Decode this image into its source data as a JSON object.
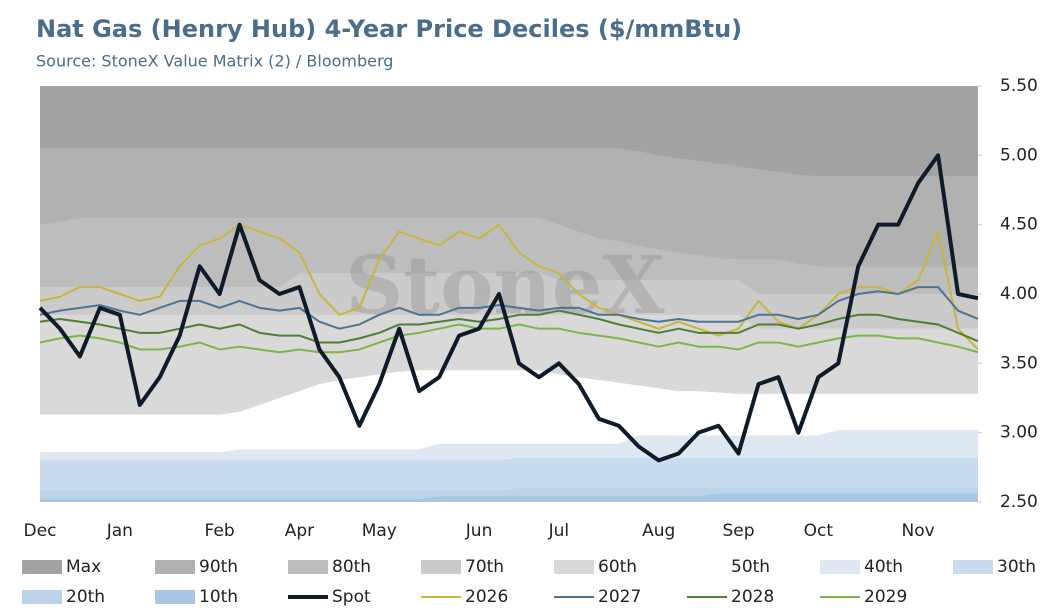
{
  "chart_data": {
    "type": "line",
    "title": "Nat Gas (Henry Hub) 4-Year Price Deciles ($/mmBtu)",
    "subtitle": "Source: StoneX Value Matrix (2) / Bloomberg",
    "watermark": "StoneX",
    "categories": [
      "Dec",
      null,
      null,
      null,
      "Jan",
      null,
      null,
      null,
      null,
      "Feb",
      null,
      null,
      null,
      "Apr",
      null,
      null,
      null,
      "May",
      null,
      null,
      null,
      null,
      "Jun",
      null,
      null,
      null,
      "Jul",
      null,
      null,
      null,
      null,
      "Aug",
      null,
      null,
      null,
      "Sep",
      null,
      null,
      null,
      "Oct",
      null,
      null,
      null,
      null,
      "Nov",
      null,
      null,
      null
    ],
    "ylim": [
      2.5,
      5.5
    ],
    "yticks": [
      {
        "value": 2.5,
        "label": "2.50"
      },
      {
        "value": 3,
        "label": "3.00"
      },
      {
        "value": 3.5,
        "label": "3.50"
      },
      {
        "value": 4,
        "label": "4.00"
      },
      {
        "value": 4.5,
        "label": "4.50"
      },
      {
        "value": 5,
        "label": "5.00"
      },
      {
        "value": 5.5,
        "label": "5.50"
      }
    ],
    "bands": [
      {
        "name": "Max",
        "color": "#a3a3a3",
        "values": [
          5.5,
          5.5,
          5.5,
          5.5,
          5.5,
          5.5,
          5.5,
          5.5,
          5.5,
          5.5,
          5.5,
          5.5,
          5.5,
          5.5,
          5.5,
          5.5,
          5.5,
          5.5,
          5.5,
          5.5,
          5.5,
          5.5,
          5.5,
          5.5,
          5.5,
          5.5,
          5.5,
          5.5,
          5.5,
          5.5,
          5.5,
          5.5,
          5.5,
          5.5,
          5.5,
          5.5,
          5.5,
          5.5,
          5.5,
          5.5,
          5.5,
          5.5,
          5.5,
          5.5,
          5.5,
          5.5,
          5.5,
          5.5
        ]
      },
      {
        "name": "90th",
        "color": "#b1b1b1",
        "values": [
          5.05,
          5.05,
          5.05,
          5.05,
          5.05,
          5.05,
          5.05,
          5.05,
          5.05,
          5.05,
          5.05,
          5.05,
          5.05,
          5.05,
          5.05,
          5.05,
          5.05,
          5.05,
          5.05,
          5.05,
          5.05,
          5.05,
          5.05,
          5.05,
          5.05,
          5.05,
          5.05,
          5.05,
          5.05,
          5.05,
          5.03,
          5.0,
          4.98,
          4.96,
          4.94,
          4.92,
          4.9,
          4.88,
          4.86,
          4.85,
          4.85,
          4.85,
          4.85,
          4.85,
          4.85,
          4.85,
          4.85,
          4.85
        ]
      },
      {
        "name": "80th",
        "color": "#bdbdbd",
        "values": [
          4.5,
          4.52,
          4.55,
          4.55,
          4.55,
          4.55,
          4.55,
          4.55,
          4.55,
          4.55,
          4.55,
          4.55,
          4.55,
          4.55,
          4.55,
          4.55,
          4.55,
          4.55,
          4.55,
          4.55,
          4.55,
          4.55,
          4.55,
          4.55,
          4.55,
          4.55,
          4.5,
          4.45,
          4.4,
          4.38,
          4.35,
          4.32,
          4.3,
          4.28,
          4.26,
          4.25,
          4.25,
          4.25,
          4.22,
          4.2,
          4.2,
          4.2,
          4.2,
          4.2,
          4.2,
          4.2,
          4.2,
          4.2
        ]
      },
      {
        "name": "70th",
        "color": "#cbcbcb",
        "values": [
          4.05,
          4.05,
          4.05,
          4.05,
          4.05,
          4.05,
          4.05,
          4.05,
          4.05,
          4.05,
          4.05,
          4.05,
          4.05,
          4.15,
          4.15,
          4.15,
          4.15,
          4.15,
          4.15,
          4.15,
          4.15,
          4.15,
          4.15,
          4.15,
          4.15,
          4.15,
          4.1,
          4.1,
          4.1,
          4.1,
          4.1,
          4.1,
          4.1,
          4.1,
          4.1,
          4.1,
          4.0,
          4.0,
          4.0,
          4.0,
          4.0,
          4.0,
          4.0,
          4.0,
          4.0,
          4.0,
          4.0,
          4.0
        ]
      },
      {
        "name": "60th",
        "color": "#d9d9d9",
        "values": [
          3.85,
          3.85,
          3.85,
          3.85,
          3.85,
          3.85,
          3.85,
          3.85,
          3.85,
          3.85,
          3.85,
          3.85,
          3.85,
          3.85,
          3.85,
          3.85,
          3.85,
          3.85,
          3.85,
          3.85,
          3.85,
          3.85,
          3.85,
          3.85,
          3.85,
          3.85,
          3.85,
          3.85,
          3.85,
          3.85,
          3.85,
          3.85,
          3.85,
          3.85,
          3.85,
          3.85,
          3.75,
          3.75,
          3.75,
          3.75,
          3.75,
          3.75,
          3.75,
          3.75,
          3.75,
          3.75,
          3.75,
          3.75
        ]
      },
      {
        "name": "50th",
        "color": "#ffffff",
        "values": [
          3.13,
          3.13,
          3.13,
          3.13,
          3.13,
          3.13,
          3.13,
          3.13,
          3.13,
          3.13,
          3.15,
          3.2,
          3.25,
          3.3,
          3.35,
          3.38,
          3.4,
          3.42,
          3.44,
          3.45,
          3.45,
          3.45,
          3.45,
          3.45,
          3.45,
          3.45,
          3.42,
          3.4,
          3.38,
          3.36,
          3.34,
          3.32,
          3.3,
          3.3,
          3.29,
          3.28,
          3.28,
          3.28,
          3.28,
          3.28,
          3.28,
          3.28,
          3.28,
          3.28,
          3.28,
          3.28,
          3.28,
          3.28
        ]
      },
      {
        "name": "40th",
        "color": "#dde8f3",
        "values": [
          2.86,
          2.86,
          2.86,
          2.86,
          2.86,
          2.86,
          2.86,
          2.86,
          2.86,
          2.86,
          2.88,
          2.88,
          2.88,
          2.88,
          2.88,
          2.88,
          2.88,
          2.88,
          2.88,
          2.88,
          2.92,
          2.92,
          2.92,
          2.92,
          2.92,
          2.92,
          2.92,
          2.92,
          2.92,
          2.92,
          2.98,
          2.98,
          2.98,
          2.98,
          2.98,
          2.98,
          2.98,
          2.98,
          2.98,
          2.98,
          3.02,
          3.02,
          3.02,
          3.02,
          3.02,
          3.02,
          3.02,
          3.02
        ]
      },
      {
        "name": "30th",
        "color": "#c9dcef",
        "values": [
          2.8,
          2.8,
          2.8,
          2.8,
          2.8,
          2.8,
          2.8,
          2.8,
          2.8,
          2.8,
          2.8,
          2.8,
          2.8,
          2.8,
          2.8,
          2.8,
          2.8,
          2.8,
          2.8,
          2.8,
          2.8,
          2.8,
          2.8,
          2.8,
          2.82,
          2.82,
          2.82,
          2.82,
          2.82,
          2.82,
          2.82,
          2.82,
          2.82,
          2.82,
          2.82,
          2.82,
          2.82,
          2.82,
          2.82,
          2.82,
          2.82,
          2.82,
          2.82,
          2.82,
          2.82,
          2.82,
          2.82,
          2.82
        ]
      },
      {
        "name": "20th",
        "color": "#bcd3ea",
        "values": [
          2.58,
          2.58,
          2.58,
          2.58,
          2.58,
          2.58,
          2.58,
          2.58,
          2.58,
          2.58,
          2.58,
          2.58,
          2.58,
          2.58,
          2.58,
          2.58,
          2.58,
          2.58,
          2.58,
          2.58,
          2.58,
          2.58,
          2.58,
          2.58,
          2.6,
          2.6,
          2.6,
          2.6,
          2.6,
          2.6,
          2.6,
          2.6,
          2.6,
          2.6,
          2.6,
          2.6,
          2.6,
          2.6,
          2.6,
          2.6,
          2.6,
          2.6,
          2.6,
          2.6,
          2.6,
          2.6,
          2.6,
          2.6
        ]
      },
      {
        "name": "10th",
        "color": "#a6c6e4",
        "values": [
          2.52,
          2.52,
          2.52,
          2.52,
          2.52,
          2.52,
          2.52,
          2.52,
          2.52,
          2.52,
          2.52,
          2.52,
          2.52,
          2.52,
          2.52,
          2.52,
          2.52,
          2.52,
          2.52,
          2.52,
          2.54,
          2.54,
          2.54,
          2.54,
          2.54,
          2.54,
          2.54,
          2.54,
          2.54,
          2.54,
          2.54,
          2.54,
          2.54,
          2.54,
          2.56,
          2.56,
          2.56,
          2.56,
          2.56,
          2.56,
          2.56,
          2.56,
          2.56,
          2.56,
          2.56,
          2.56,
          2.56,
          2.56
        ]
      }
    ],
    "series": [
      {
        "name": "Spot",
        "color": "#0d1b2a",
        "values": [
          3.9,
          3.75,
          3.55,
          3.9,
          3.85,
          3.2,
          3.4,
          3.7,
          4.2,
          4.0,
          4.5,
          4.1,
          4.0,
          4.05,
          3.6,
          3.4,
          3.05,
          3.35,
          3.75,
          3.3,
          3.4,
          3.7,
          3.75,
          4.0,
          3.5,
          3.4,
          3.5,
          3.35,
          3.1,
          3.05,
          2.9,
          2.8,
          2.85,
          3.0,
          3.05,
          2.85,
          3.35,
          3.4,
          3.0,
          3.4,
          3.5,
          4.2,
          4.5,
          4.5,
          4.8,
          5.0,
          4.0,
          3.97
        ]
      },
      {
        "name": "2026",
        "color": "#c9b53c",
        "values": [
          3.95,
          3.98,
          4.05,
          4.05,
          4.0,
          3.95,
          3.98,
          4.2,
          4.35,
          4.4,
          4.5,
          4.45,
          4.4,
          4.3,
          4.0,
          3.85,
          3.9,
          4.25,
          4.45,
          4.4,
          4.35,
          4.45,
          4.4,
          4.5,
          4.3,
          4.2,
          4.15,
          4.0,
          3.9,
          3.85,
          3.8,
          3.75,
          3.8,
          3.75,
          3.7,
          3.75,
          3.95,
          3.8,
          3.75,
          3.85,
          4.0,
          4.05,
          4.05,
          4.0,
          4.1,
          4.45,
          3.75,
          3.6
        ]
      },
      {
        "name": "2027",
        "color": "#4f7392",
        "values": [
          3.85,
          3.88,
          3.9,
          3.92,
          3.88,
          3.85,
          3.9,
          3.95,
          3.95,
          3.9,
          3.95,
          3.9,
          3.88,
          3.9,
          3.8,
          3.75,
          3.78,
          3.85,
          3.9,
          3.85,
          3.85,
          3.9,
          3.9,
          3.92,
          3.9,
          3.88,
          3.9,
          3.9,
          3.85,
          3.85,
          3.82,
          3.8,
          3.82,
          3.8,
          3.8,
          3.8,
          3.85,
          3.85,
          3.82,
          3.85,
          3.95,
          4.0,
          4.02,
          4.0,
          4.05,
          4.05,
          3.88,
          3.82
        ]
      },
      {
        "name": "2028",
        "color": "#4e7d34",
        "values": [
          3.8,
          3.82,
          3.8,
          3.78,
          3.75,
          3.72,
          3.72,
          3.75,
          3.78,
          3.75,
          3.78,
          3.72,
          3.7,
          3.7,
          3.65,
          3.65,
          3.68,
          3.72,
          3.78,
          3.78,
          3.8,
          3.82,
          3.8,
          3.82,
          3.85,
          3.85,
          3.88,
          3.85,
          3.82,
          3.78,
          3.75,
          3.72,
          3.75,
          3.72,
          3.72,
          3.72,
          3.78,
          3.78,
          3.75,
          3.78,
          3.82,
          3.85,
          3.85,
          3.82,
          3.8,
          3.78,
          3.72,
          3.66
        ]
      },
      {
        "name": "2029",
        "color": "#7ab648",
        "values": [
          3.65,
          3.68,
          3.7,
          3.68,
          3.65,
          3.6,
          3.6,
          3.62,
          3.65,
          3.6,
          3.62,
          3.6,
          3.58,
          3.6,
          3.58,
          3.58,
          3.6,
          3.65,
          3.7,
          3.72,
          3.75,
          3.78,
          3.75,
          3.75,
          3.78,
          3.75,
          3.75,
          3.72,
          3.7,
          3.68,
          3.65,
          3.62,
          3.65,
          3.62,
          3.62,
          3.6,
          3.65,
          3.65,
          3.62,
          3.65,
          3.68,
          3.7,
          3.7,
          3.68,
          3.68,
          3.65,
          3.62,
          3.58
        ]
      }
    ]
  }
}
